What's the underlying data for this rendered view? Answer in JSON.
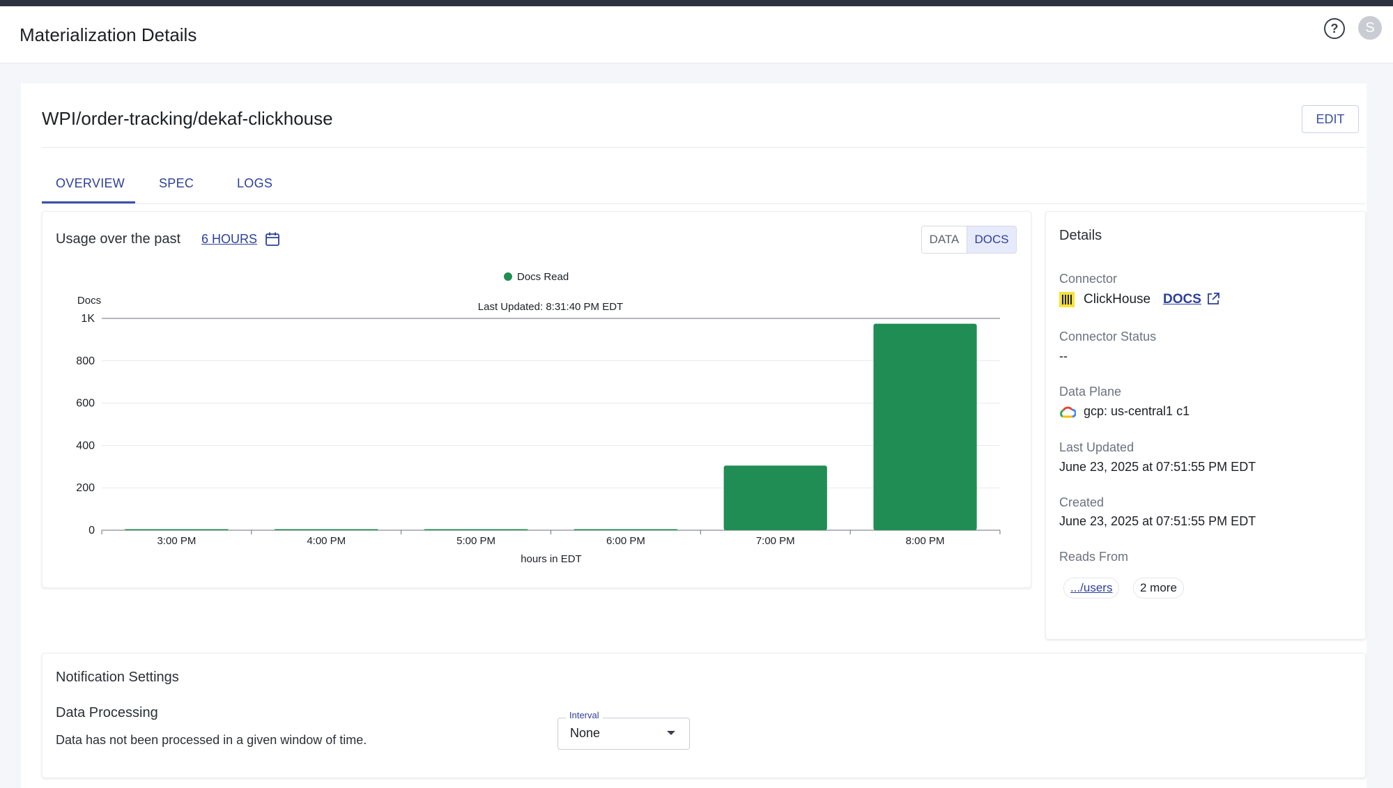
{
  "app": {
    "title": "Materialization Details",
    "avatar_initial": "S",
    "help_glyph": "?"
  },
  "entity": {
    "name": "WPI/order-tracking/dekaf-clickhouse",
    "edit_label": "EDIT"
  },
  "tabs": [
    {
      "label": "OVERVIEW",
      "active": true
    },
    {
      "label": "SPEC"
    },
    {
      "label": "LOGS"
    }
  ],
  "usage": {
    "label": "Usage over the past",
    "range_link": "6 HOURS",
    "toggle": {
      "data_label": "DATA",
      "docs_label": "DOCS",
      "selected": "DOCS"
    }
  },
  "chart_data": {
    "type": "bar",
    "title": "",
    "legend": "Docs Read",
    "subtitle": "Last Updated: 8:31:40 PM EDT",
    "xlabel": "hours in EDT",
    "ylabel": "Docs",
    "categories": [
      "3:00 PM",
      "4:00 PM",
      "5:00 PM",
      "6:00 PM",
      "7:00 PM",
      "8:00 PM"
    ],
    "values": [
      0,
      0,
      0,
      0,
      305,
      975
    ],
    "ylim": [
      0,
      1000
    ],
    "yticks": [
      "0",
      "200",
      "400",
      "600",
      "800",
      "1K"
    ],
    "color": "#208d54"
  },
  "details": {
    "title": "Details",
    "connector_label": "Connector",
    "connector_name": "ClickHouse",
    "docs_link": "DOCS",
    "connector_status_label": "Connector Status",
    "connector_status_value": "--",
    "data_plane_label": "Data Plane",
    "data_plane_value": "gcp: us-central1 c1",
    "last_updated_label": "Last Updated",
    "last_updated_value": "June 23, 2025 at 07:51:55 PM EDT",
    "created_label": "Created",
    "created_value": "June 23, 2025 at 07:51:55 PM EDT",
    "reads_from_label": "Reads From",
    "reads_from_chip": ".../users",
    "reads_from_more": "2 more"
  },
  "notifications": {
    "title": "Notification Settings",
    "data_processing_title": "Data Processing",
    "data_processing_desc": "Data has not been processed in a given window of time.",
    "interval_label": "Interval",
    "interval_value": "None"
  },
  "icons": [
    "help-icon",
    "calendar-icon",
    "clickhouse-logo-icon",
    "external-link-icon",
    "gcp-cloud-icon",
    "chevron-down-icon"
  ]
}
